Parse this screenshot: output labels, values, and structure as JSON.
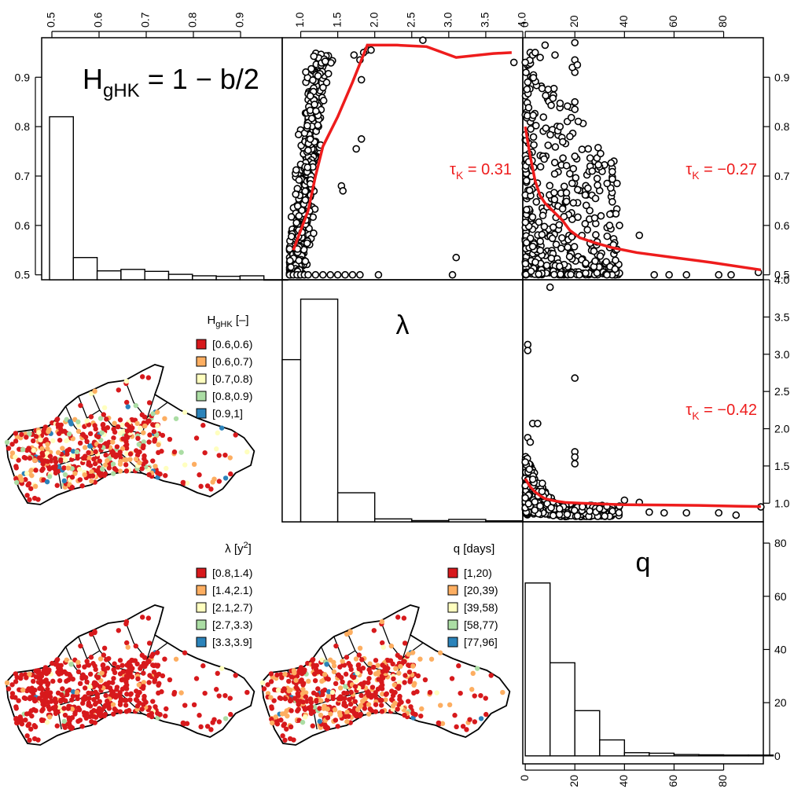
{
  "chart_data": [
    {
      "type": "bar",
      "name": "H_gHK histogram",
      "title": "H",
      "title_sub": "gHK",
      "title_rest": " = 1 − b/2",
      "bins": [
        [
          0.5,
          0.55
        ],
        [
          0.55,
          0.6
        ],
        [
          0.6,
          0.65
        ],
        [
          0.65,
          0.7
        ],
        [
          0.7,
          0.75
        ],
        [
          0.75,
          0.8
        ],
        [
          0.8,
          0.85
        ],
        [
          0.85,
          0.9
        ],
        [
          0.9,
          0.95
        ],
        [
          0.95,
          1.0
        ]
      ],
      "values": [
        0.82,
        0.535,
        0.508,
        0.511,
        0.507,
        0.501,
        0.498,
        0.497,
        0.498,
        0.49
      ],
      "top_axis_ticks": [
        "0.5",
        "0.6",
        "0.7",
        "0.8",
        "0.9"
      ],
      "left_axis_ticks": [
        "0.5",
        "0.6",
        "0.7",
        "0.8",
        "0.9"
      ],
      "ylim": [
        0.49,
        0.98
      ]
    },
    {
      "type": "scatter",
      "name": "H vs lambda",
      "x_label": "λ",
      "y_label": "H",
      "top_axis_ticks": [
        "1.0",
        "1.5",
        "2.0",
        "2.5",
        "3.0",
        "3.5",
        "4.0"
      ],
      "xlim": [
        0.75,
        4.0
      ],
      "ylim": [
        0.49,
        0.98
      ],
      "annotation": {
        "symbol": "τ",
        "sub": "K",
        "text": " = 0.31",
        "color": "#ee1c1c"
      },
      "smooth": {
        "x": [
          0.9,
          1.0,
          1.1,
          1.2,
          1.3,
          1.5,
          1.7,
          1.9,
          2.3,
          2.7,
          3.1,
          3.6,
          3.85
        ],
        "y": [
          0.55,
          0.59,
          0.63,
          0.7,
          0.76,
          0.82,
          0.89,
          0.965,
          0.965,
          0.962,
          0.94,
          0.948,
          0.95
        ]
      },
      "outliers": [
        [
          0.85,
          0.5
        ],
        [
          0.9,
          0.5
        ],
        [
          0.95,
          0.5
        ],
        [
          1.0,
          0.5
        ],
        [
          1.05,
          0.5
        ],
        [
          1.1,
          0.5
        ],
        [
          1.2,
          0.5
        ],
        [
          1.3,
          0.5
        ],
        [
          1.4,
          0.5
        ],
        [
          1.5,
          0.5
        ],
        [
          1.6,
          0.5
        ],
        [
          1.7,
          0.5
        ],
        [
          1.8,
          0.5
        ],
        [
          2.05,
          0.5
        ],
        [
          3.05,
          0.5
        ],
        [
          3.1,
          0.535
        ],
        [
          2.65,
          0.975
        ],
        [
          3.88,
          0.93
        ],
        [
          1.55,
          0.68
        ],
        [
          1.57,
          0.67
        ],
        [
          1.75,
          0.755
        ],
        [
          1.82,
          0.775
        ],
        [
          1.82,
          0.895
        ],
        [
          1.9,
          0.955
        ],
        [
          1.8,
          0.935
        ],
        [
          1.95,
          0.955
        ],
        [
          1.72,
          0.945
        ],
        [
          1.85,
          0.95
        ]
      ]
    },
    {
      "type": "scatter",
      "name": "H vs q",
      "x_label": "q",
      "y_label": "H",
      "top_axis_ticks": [
        "0",
        "20",
        "40",
        "60",
        "80"
      ],
      "right_axis_ticks": [
        "0.5",
        "0.6",
        "0.7",
        "0.8",
        "0.9"
      ],
      "xlim": [
        -1,
        96
      ],
      "ylim": [
        0.49,
        0.98
      ],
      "annotation": {
        "symbol": "τ",
        "sub": "K",
        "text": " = −0.27",
        "color": "#ee1c1c"
      },
      "smooth": {
        "x": [
          0,
          2,
          4,
          6,
          8,
          10,
          12,
          15,
          18,
          22,
          28,
          35,
          45,
          60,
          75,
          95
        ],
        "y": [
          0.8,
          0.74,
          0.69,
          0.66,
          0.645,
          0.635,
          0.625,
          0.61,
          0.59,
          0.575,
          0.565,
          0.555,
          0.545,
          0.535,
          0.525,
          0.51
        ]
      },
      "outliers": [
        [
          20,
          0.97
        ],
        [
          20,
          0.935
        ],
        [
          20,
          0.91
        ],
        [
          19,
          0.92
        ],
        [
          21,
          0.925
        ],
        [
          8,
          0.965
        ],
        [
          12,
          0.945
        ],
        [
          20,
          0.85
        ],
        [
          20,
          0.835
        ],
        [
          14,
          0.8
        ],
        [
          18,
          0.78
        ],
        [
          20,
          0.74
        ],
        [
          27,
          0.71
        ],
        [
          29,
          0.695
        ],
        [
          33,
          0.685
        ],
        [
          37,
          0.685
        ],
        [
          26,
          0.63
        ],
        [
          28,
          0.615
        ],
        [
          34,
          0.6
        ],
        [
          38,
          0.6
        ],
        [
          46,
          0.58
        ],
        [
          52,
          0.5
        ],
        [
          58,
          0.5
        ],
        [
          65,
          0.5
        ],
        [
          78,
          0.5
        ],
        [
          83,
          0.5
        ],
        [
          94,
          0.505
        ],
        [
          2,
          0.95
        ],
        [
          3,
          0.945
        ],
        [
          4,
          0.95
        ],
        [
          6,
          0.94
        ],
        [
          0,
          0.93
        ],
        [
          1,
          0.89
        ]
      ]
    },
    {
      "type": "scatter",
      "name": "lambda vs q",
      "x_label": "q",
      "y_label": "λ",
      "right_axis_ticks": [
        "1.0",
        "1.5",
        "2.0",
        "2.5",
        "3.0",
        "3.5",
        "4.0"
      ],
      "xlim": [
        -1,
        96
      ],
      "ylim": [
        0.75,
        4.0
      ],
      "annotation": {
        "symbol": "τ",
        "sub": "K",
        "text": " = −0.42",
        "color": "#ee1c1c"
      },
      "smooth": {
        "x": [
          0,
          2,
          4,
          6,
          8,
          12,
          16,
          22,
          30,
          40,
          55,
          70,
          85,
          95
        ],
        "y": [
          1.33,
          1.22,
          1.15,
          1.1,
          1.06,
          1.03,
          1.01,
          1.0,
          0.99,
          0.98,
          0.975,
          0.97,
          0.96,
          0.955
        ]
      },
      "outliers": [
        [
          10,
          3.9
        ],
        [
          1,
          3.13
        ],
        [
          1,
          3.05
        ],
        [
          20,
          2.68
        ],
        [
          3,
          2.07
        ],
        [
          5,
          2.07
        ],
        [
          1,
          1.88
        ],
        [
          2,
          1.82
        ],
        [
          20,
          1.69
        ],
        [
          20,
          1.62
        ],
        [
          20,
          1.53
        ],
        [
          40,
          1.04
        ],
        [
          46,
          1.01
        ],
        [
          50,
          0.88
        ],
        [
          56,
          0.87
        ],
        [
          65,
          0.87
        ],
        [
          78,
          0.87
        ],
        [
          85,
          0.84
        ],
        [
          95,
          0.95
        ]
      ]
    },
    {
      "type": "bar",
      "name": "lambda histogram",
      "title": "λ",
      "bins": [
        [
          0.75,
          1.0
        ],
        [
          1.0,
          1.5
        ],
        [
          1.5,
          2.0
        ],
        [
          2.0,
          2.5
        ],
        [
          2.5,
          3.0
        ],
        [
          3.0,
          3.5
        ],
        [
          3.5,
          4.0
        ]
      ],
      "values": [
        67,
        92,
        12,
        1.2,
        0.5,
        1.0,
        0.4
      ]
    },
    {
      "type": "bar",
      "name": "q histogram",
      "title": "q",
      "bins": [
        [
          0,
          10
        ],
        [
          10,
          20
        ],
        [
          20,
          30
        ],
        [
          30,
          40
        ],
        [
          40,
          50
        ],
        [
          50,
          60
        ],
        [
          60,
          70
        ],
        [
          70,
          80
        ],
        [
          80,
          90
        ],
        [
          90,
          100
        ]
      ],
      "values": [
        65,
        35,
        17,
        6,
        1.2,
        1.0,
        0.5,
        0.4,
        0.3,
        0.3
      ],
      "bottom_axis_ticks": [
        "0",
        "20",
        "40",
        "60",
        "80"
      ],
      "right_axis_ticks": [
        "0",
        "20",
        "40",
        "60",
        "80"
      ],
      "xlim": [
        -1,
        96
      ],
      "ylim": [
        -3,
        88
      ]
    }
  ],
  "maps": [
    {
      "name": "H_gHK map",
      "legend_title": "H",
      "legend_title_sub": "gHK",
      "legend_title_rest": " [–]",
      "legend": [
        {
          "label": "[0.6,0.6)",
          "color": "#d7191c"
        },
        {
          "label": "[0.6,0.7)",
          "color": "#fdae61"
        },
        {
          "label": "[0.7,0.8)",
          "color": "#ffffbf"
        },
        {
          "label": "[0.8,0.9)",
          "color": "#abdda4"
        },
        {
          "label": "[0.9,1]",
          "color": "#2b83ba"
        }
      ],
      "mix": [
        0.55,
        0.18,
        0.12,
        0.1,
        0.05
      ]
    },
    {
      "name": "lambda map",
      "legend_title": "λ [y",
      "legend_title_sup": "2",
      "legend_title_rest": "]",
      "legend": [
        {
          "label": "[0.8,1.4)",
          "color": "#d7191c"
        },
        {
          "label": "[1.4,2.1)",
          "color": "#fdae61"
        },
        {
          "label": "[2.1,2.7)",
          "color": "#ffffbf"
        },
        {
          "label": "[2.7,3.3)",
          "color": "#abdda4"
        },
        {
          "label": "[3.3,3.9]",
          "color": "#2b83ba"
        }
      ],
      "mix": [
        0.88,
        0.08,
        0.02,
        0.01,
        0.01
      ]
    },
    {
      "name": "q map",
      "legend_title": "q [days]",
      "legend": [
        {
          "label": "[1,20)",
          "color": "#d7191c"
        },
        {
          "label": "[20,39)",
          "color": "#fdae61"
        },
        {
          "label": "[39,58)",
          "color": "#ffffbf"
        },
        {
          "label": "[58,77)",
          "color": "#abdda4"
        },
        {
          "label": "[77,96]",
          "color": "#2b83ba"
        }
      ],
      "mix": [
        0.62,
        0.28,
        0.06,
        0.02,
        0.02
      ]
    }
  ],
  "colors": {
    "smooth_line": "#ee1c1c",
    "axis": "#000000"
  }
}
